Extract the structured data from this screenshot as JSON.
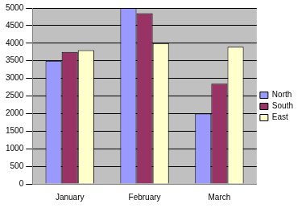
{
  "chart_data": {
    "type": "bar",
    "categories": [
      "January",
      "February",
      "March"
    ],
    "series": [
      {
        "name": "North",
        "color": "#9999ff",
        "values": [
          3500,
          5000,
          2000
        ]
      },
      {
        "name": "South",
        "color": "#993366",
        "values": [
          3750,
          4850,
          2850
        ]
      },
      {
        "name": "East",
        "color": "#ffffcc",
        "values": [
          3800,
          4000,
          3900
        ]
      }
    ],
    "ylim": [
      0,
      5000
    ],
    "yticks": [
      0,
      500,
      1000,
      1500,
      2000,
      2500,
      3000,
      3500,
      4000,
      4500,
      5000
    ],
    "grid": true,
    "legend": "right"
  }
}
